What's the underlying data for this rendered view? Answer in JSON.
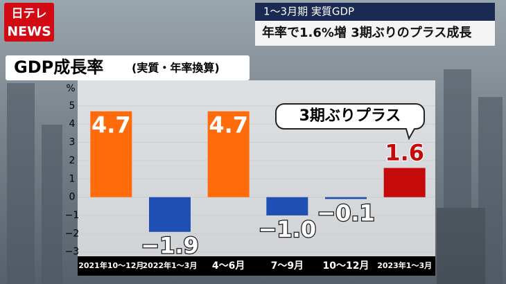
{
  "logo": {
    "top": "日テレ",
    "bottom": "NEWS"
  },
  "headline": {
    "kicker": "1〜3月期 実質GDP",
    "text": "年率で1.6%増 3期ぶりのプラス成長"
  },
  "chart_data": {
    "type": "bar",
    "title": "GDP成長率",
    "subtitle": "(実質・年率換算)",
    "y_label": "%",
    "categories": [
      "2021年10〜12月",
      "2022年1〜3月",
      "4〜6月",
      "7〜9月",
      "10〜12月",
      "2023年1〜3月"
    ],
    "values": [
      4.7,
      -1.9,
      4.7,
      -1.0,
      -0.1,
      1.6
    ],
    "value_labels": [
      "4.7",
      "−1.9",
      "4.7",
      "−1.0",
      "−0.1",
      "1.6"
    ],
    "colors": [
      "#ff6a0a",
      "#1f4fb4",
      "#ff6a0a",
      "#1f4fb4",
      "#1f4fb4",
      "#c40a0a"
    ],
    "ylim": [
      -3.2,
      5.6
    ],
    "yticks": [
      5,
      4,
      3,
      2,
      1,
      0,
      {
        "value": -1,
        "label": "−1"
      },
      {
        "value": -2,
        "label": "−2"
      },
      {
        "value": -3,
        "label": "−3"
      }
    ],
    "grid": true,
    "annotation": "3期ぶりプラス"
  }
}
